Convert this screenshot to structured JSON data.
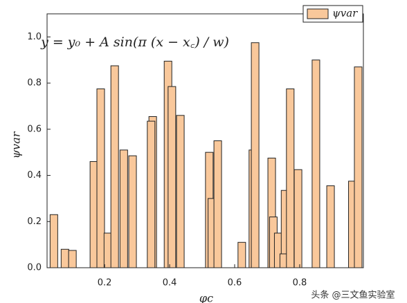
{
  "chart_data": {
    "type": "bar",
    "annotation": "y = y₀ + A sin(π (x − x꜀) / w)",
    "x_label": "φc",
    "y_label": "ψvar",
    "watermark": "头条 @三文鱼实验室",
    "series": [
      {
        "name": "ψvar",
        "color": "#f9c89b",
        "x": [
          0.044,
          0.078,
          0.101,
          0.167,
          0.188,
          0.21,
          0.231,
          0.259,
          0.286,
          0.348,
          0.343,
          0.395,
          0.407,
          0.433,
          0.522,
          0.53,
          0.548,
          0.622,
          0.656,
          0.663,
          0.714,
          0.719,
          0.734,
          0.755,
          0.751,
          0.771,
          0.795,
          0.85,
          0.895,
          0.962,
          0.98
        ],
        "values": [
          0.23,
          0.08,
          0.075,
          0.46,
          0.775,
          0.15,
          0.875,
          0.51,
          0.485,
          0.655,
          0.635,
          0.895,
          0.785,
          0.66,
          0.5,
          0.3,
          0.55,
          0.11,
          0.51,
          0.975,
          0.475,
          0.22,
          0.15,
          0.335,
          0.06,
          0.775,
          0.425,
          0.9,
          0.355,
          0.375,
          0.87
        ]
      }
    ],
    "xlim": [
      0.023,
      0.996
    ],
    "xticks": [
      0.2,
      0.4,
      0.6,
      0.8
    ],
    "ylim": [
      0,
      1.1
    ],
    "yticks": [
      {
        "value": 0,
        "label": "0.0"
      },
      {
        "value": 0.2,
        "label": "0.2"
      },
      {
        "value": 0.4,
        "label": "0.4"
      },
      {
        "value": 0.6,
        "label": "0.6"
      },
      {
        "value": 0.8,
        "label": "0.8"
      },
      {
        "value": 1.0,
        "label": "1.0"
      }
    ],
    "legend": "upper right",
    "grid": false
  }
}
